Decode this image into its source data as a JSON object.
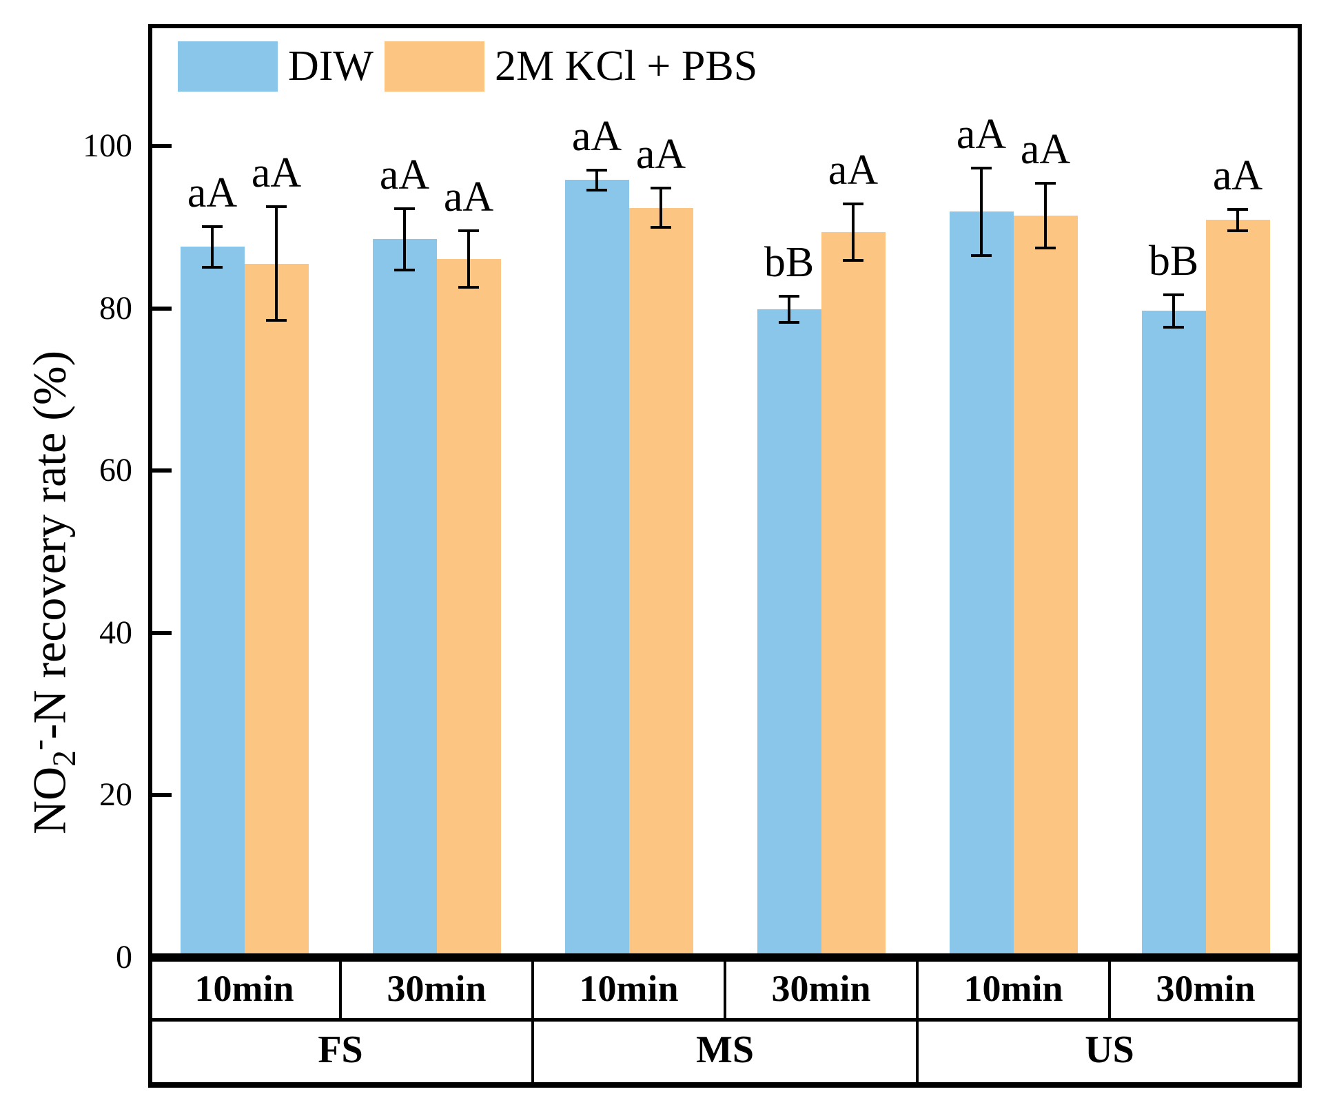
{
  "chart_data": {
    "type": "bar",
    "title": "",
    "ylabel": "NO2--N recovery rate (%)",
    "ylabel_parts": {
      "prefix": "NO",
      "sub": "2",
      "sup": "-",
      "rest": "-N recovery rate (%)"
    },
    "yticks": [
      "0",
      "20",
      "40",
      "60",
      "80",
      "100"
    ],
    "ytick_values": [
      0,
      20,
      40,
      60,
      80,
      100
    ],
    "ylim": [
      0,
      115
    ],
    "grid": false,
    "legend_position": "top-left-inside",
    "axis_color": "#000000",
    "categories": [
      {
        "time": "10min",
        "section": "FS"
      },
      {
        "time": "30min",
        "section": "FS"
      },
      {
        "time": "10min",
        "section": "MS"
      },
      {
        "time": "30min",
        "section": "MS"
      },
      {
        "time": "10min",
        "section": "US"
      },
      {
        "time": "30min",
        "section": "US"
      }
    ],
    "sections": [
      {
        "label": "FS",
        "cols": 2
      },
      {
        "label": "MS",
        "cols": 2
      },
      {
        "label": "US",
        "cols": 2
      }
    ],
    "series": [
      {
        "name": "DIW",
        "color": "#8AC6E9",
        "values": [
          87.6,
          88.5,
          95.8,
          79.9,
          91.9,
          79.7
        ],
        "errors": [
          2.5,
          3.8,
          1.2,
          1.6,
          5.4,
          2.0
        ],
        "sig_labels": [
          "aA",
          "aA",
          "aA",
          "bB",
          "aA",
          "bB"
        ]
      },
      {
        "name": "2M KCl + PBS",
        "color": "#FCC682",
        "values": [
          85.5,
          86.1,
          92.4,
          89.4,
          91.4,
          90.9
        ],
        "errors": [
          7.0,
          3.5,
          2.4,
          3.5,
          4.0,
          1.3
        ],
        "sig_labels": [
          "aA",
          "aA",
          "aA",
          "aA",
          "aA",
          "aA"
        ]
      }
    ]
  }
}
